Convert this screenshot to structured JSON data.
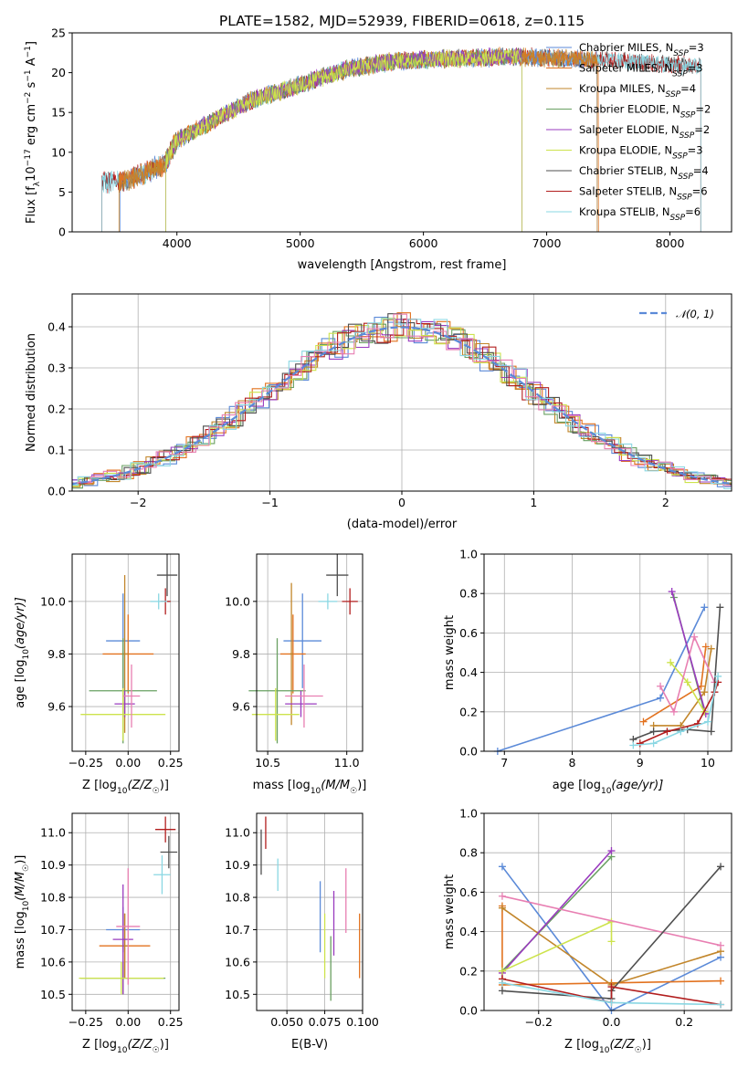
{
  "colors": {
    "Chabrier MILES": "#5b8ad8",
    "Salpeter MILES": "#e2721f",
    "Kroupa MILES": "#c2862b",
    "Chabrier ELODIE": "#69a062",
    "Salpeter ELODIE": "#9a3bbf",
    "Kroupa ELODIE": "#cde34c",
    "Chabrier STELIB": "#4f4f4f",
    "Salpeter STELIB": "#b21e1e",
    "Kroupa STELIB": "#8ad7e3",
    "pink": "#e87fb2",
    "normal": "#5b8ad8"
  },
  "chart_data": [
    {
      "id": "spectrum",
      "type": "line",
      "title": "PLATE=1582, MJD=52939, FIBERID=0618, z=0.115",
      "xlabel": "wavelength [Angstrom, rest frame]",
      "ylabel": "Flux [f",
      "ylabel_sub": "λ",
      "ylabel_rest": "10",
      "ylabel_sup1": "−17",
      "ylabel_rest2": " erg cm",
      "ylabel_sup2": "−2",
      "ylabel_rest3": " s",
      "ylabel_sup3": "−1",
      "ylabel_rest4": " A",
      "ylabel_sup4": "−1",
      "ylabel_end": "]",
      "xlim": [
        3150,
        8500
      ],
      "ylim": [
        0,
        25
      ],
      "xticks": [
        4000,
        5000,
        6000,
        7000,
        8000
      ],
      "yticks": [
        0,
        5,
        10,
        15,
        20,
        25
      ],
      "legend_position": "right",
      "legend": [
        {
          "label": "Chabrier MILES, N",
          "sub": "SSP",
          "value": "=3",
          "key": "Chabrier MILES"
        },
        {
          "label": "Salpeter MILES, N",
          "sub": "SSP",
          "value": "=3",
          "key": "Salpeter MILES"
        },
        {
          "label": "Kroupa MILES, N",
          "sub": "SSP",
          "value": "=4",
          "key": "Kroupa MILES"
        },
        {
          "label": "Chabrier ELODIE, N",
          "sub": "SSP",
          "value": "=2",
          "key": "Chabrier ELODIE"
        },
        {
          "label": "Salpeter ELODIE, N",
          "sub": "SSP",
          "value": "=2",
          "key": "Salpeter ELODIE"
        },
        {
          "label": "Kroupa ELODIE, N",
          "sub": "SSP",
          "value": "=3",
          "key": "Kroupa ELODIE"
        },
        {
          "label": "Chabrier STELIB, N",
          "sub": "SSP",
          "value": "=4",
          "key": "Chabrier STELIB"
        },
        {
          "label": "Salpeter STELIB, N",
          "sub": "SSP",
          "value": "=6",
          "key": "Salpeter STELIB"
        },
        {
          "label": "Kroupa STELIB, N",
          "sub": "SSP",
          "value": "=6",
          "key": "Kroupa STELIB"
        }
      ],
      "continuum": [
        [
          3390,
          6.2
        ],
        [
          3600,
          6.5
        ],
        [
          3900,
          8.5
        ],
        [
          4000,
          11.5
        ],
        [
          4300,
          14
        ],
        [
          4600,
          16.5
        ],
        [
          5000,
          18.5
        ],
        [
          5400,
          20.5
        ],
        [
          5800,
          21.5
        ],
        [
          6300,
          21.8
        ],
        [
          6700,
          22
        ],
        [
          7100,
          21.8
        ],
        [
          7600,
          21.5
        ],
        [
          8000,
          21
        ],
        [
          8250,
          20.8
        ]
      ],
      "series_ranges": [
        {
          "key": "Chabrier MILES",
          "x": [
            3540,
            7410
          ]
        },
        {
          "key": "Salpeter MILES",
          "x": [
            3530,
            7420
          ]
        },
        {
          "key": "Kroupa MILES",
          "x": [
            3530,
            7410
          ]
        },
        {
          "key": "Chabrier ELODIE",
          "x": [
            3910,
            6800
          ]
        },
        {
          "key": "Salpeter ELODIE",
          "x": [
            3910,
            6800
          ]
        },
        {
          "key": "Kroupa ELODIE",
          "x": [
            3910,
            6800
          ]
        },
        {
          "key": "Chabrier STELIB",
          "x": [
            3390,
            8250
          ]
        },
        {
          "key": "Salpeter STELIB",
          "x": [
            3390,
            8250
          ]
        },
        {
          "key": "Kroupa STELIB",
          "x": [
            3390,
            8250
          ]
        }
      ]
    },
    {
      "id": "residuals",
      "type": "histogram",
      "xlabel": "(data-model)/error",
      "ylabel": "Normed distribution",
      "xlim": [
        -2.5,
        2.5
      ],
      "ylim": [
        0,
        0.48
      ],
      "xticks": [
        -2,
        -1,
        0,
        1,
        2
      ],
      "xtick_labels": [
        "−2",
        "−1",
        "0",
        "1",
        "2"
      ],
      "yticks": [
        0.0,
        0.1,
        0.2,
        0.3,
        0.4
      ],
      "ytick_labels": [
        "0.0",
        "0.1",
        "0.2",
        "0.3",
        "0.4"
      ],
      "legend": [
        {
          "label": "𝒩(0, 1)",
          "key": "normal"
        }
      ],
      "legend_position": "top-right",
      "bin_width": 0.1
    },
    {
      "id": "age_vs_Z",
      "type": "errorbar",
      "xlabel": "Z [log",
      "xlabel_sub": "10",
      "xlabel_rest": "(Z/Z",
      "xlabel_sub2": "☉",
      "xlabel_end": ")]",
      "ylabel": "age  [log",
      "ylabel_sub": "10",
      "ylabel_rest": "(age/yr)]",
      "xlim": [
        -0.33,
        0.3
      ],
      "ylim": [
        9.43,
        10.18
      ],
      "xticks": [
        -0.25,
        0.0,
        0.25
      ],
      "xtick_labels": [
        "−0.25",
        "0.00",
        "0.25"
      ],
      "yticks": [
        9.6,
        9.8,
        10.0
      ],
      "ytick_labels": [
        "9.6",
        "9.8",
        "10.0"
      ],
      "points": [
        {
          "key": "Chabrier MILES",
          "x": -0.03,
          "y": 9.85,
          "xerr": 0.1,
          "yerr": 0.18
        },
        {
          "key": "Salpeter MILES",
          "x": -0.0,
          "y": 9.8,
          "xerr": 0.15,
          "yerr": 0.15
        },
        {
          "key": "Kroupa MILES",
          "x": -0.02,
          "y": 9.8,
          "xerr": 0.02,
          "yerr": 0.3
        },
        {
          "key": "Chabrier ELODIE",
          "x": -0.03,
          "y": 9.66,
          "xerr": 0.2,
          "yerr": 0.2
        },
        {
          "key": "Salpeter ELODIE",
          "x": -0.02,
          "y": 9.61,
          "xerr": 0.06,
          "yerr": 0.05
        },
        {
          "key": "Kroupa ELODIE",
          "x": -0.03,
          "y": 9.57,
          "xerr": 0.25,
          "yerr": 0.1
        },
        {
          "key": "pink",
          "x": 0.02,
          "y": 9.64,
          "xerr": 0.05,
          "yerr": 0.12
        },
        {
          "key": "Chabrier STELIB",
          "x": 0.23,
          "y": 10.1,
          "xerr": 0.06,
          "yerr": 0.08
        },
        {
          "key": "Salpeter STELIB",
          "x": 0.22,
          "y": 10.0,
          "xerr": 0.03,
          "yerr": 0.05
        },
        {
          "key": "Kroupa STELIB",
          "x": 0.18,
          "y": 10.0,
          "xerr": 0.05,
          "yerr": 0.03
        }
      ]
    },
    {
      "id": "age_vs_mass",
      "type": "errorbar",
      "xlabel": "mass [log",
      "xlabel_sub": "10",
      "xlabel_rest": "(M/M",
      "xlabel_sub2": "☉",
      "xlabel_end": ")]",
      "xlim": [
        10.43,
        11.1
      ],
      "ylim": [
        9.43,
        10.18
      ],
      "xticks": [
        10.5,
        11.0
      ],
      "xtick_labels": [
        "10.5",
        "11.0"
      ],
      "yticks": [
        9.6,
        9.8,
        10.0
      ],
      "ytick_labels": [
        "9.6",
        "9.8",
        "10.0"
      ],
      "points": [
        {
          "key": "Chabrier MILES",
          "x": 10.72,
          "y": 9.85,
          "xerr": 0.12,
          "yerr": 0.18
        },
        {
          "key": "Salpeter MILES",
          "x": 10.66,
          "y": 9.8,
          "xerr": 0.08,
          "yerr": 0.15
        },
        {
          "key": "Kroupa MILES",
          "x": 10.65,
          "y": 9.8,
          "xerr": 0.01,
          "yerr": 0.27
        },
        {
          "key": "Chabrier ELODIE",
          "x": 10.56,
          "y": 9.66,
          "xerr": 0.18,
          "yerr": 0.2
        },
        {
          "key": "Salpeter ELODIE",
          "x": 10.71,
          "y": 9.61,
          "xerr": 0.1,
          "yerr": 0.05
        },
        {
          "key": "Kroupa ELODIE",
          "x": 10.55,
          "y": 9.57,
          "xerr": 0.15,
          "yerr": 0.1
        },
        {
          "key": "pink",
          "x": 10.73,
          "y": 9.64,
          "xerr": 0.12,
          "yerr": 0.12
        },
        {
          "key": "Chabrier STELIB",
          "x": 10.94,
          "y": 10.1,
          "xerr": 0.07,
          "yerr": 0.08
        },
        {
          "key": "Salpeter STELIB",
          "x": 11.02,
          "y": 10.0,
          "xerr": 0.05,
          "yerr": 0.05
        },
        {
          "key": "Kroupa STELIB",
          "x": 10.88,
          "y": 10.0,
          "xerr": 0.06,
          "yerr": 0.03
        }
      ]
    },
    {
      "id": "weight_vs_age",
      "type": "line",
      "xlabel": "age  [log",
      "xlabel_sub": "10",
      "xlabel_rest": "(age/yr)]",
      "ylabel": "mass weight",
      "xlim": [
        6.7,
        10.35
      ],
      "ylim": [
        0.0,
        1.0
      ],
      "xticks": [
        7,
        8,
        9,
        10
      ],
      "xtick_labels": [
        "7",
        "8",
        "9",
        "10"
      ],
      "yticks": [
        0.0,
        0.2,
        0.4,
        0.6,
        0.8,
        1.0
      ],
      "ytick_labels": [
        "0.0",
        "0.2",
        "0.4",
        "0.6",
        "0.8",
        "1.0"
      ],
      "series": [
        {
          "key": "Chabrier MILES",
          "x": [
            6.9,
            9.3,
            9.95
          ],
          "y": [
            0.0,
            0.27,
            0.73
          ]
        },
        {
          "key": "Salpeter MILES",
          "x": [
            9.05,
            9.9,
            9.97
          ],
          "y": [
            0.15,
            0.33,
            0.53
          ]
        },
        {
          "key": "Kroupa MILES",
          "x": [
            9.2,
            9.6,
            9.95,
            10.05
          ],
          "y": [
            0.13,
            0.13,
            0.3,
            0.52
          ]
        },
        {
          "key": "Chabrier ELODIE",
          "x": [
            9.5,
            9.95
          ],
          "y": [
            0.78,
            0.2
          ]
        },
        {
          "key": "Salpeter ELODIE",
          "x": [
            9.47,
            9.97
          ],
          "y": [
            0.81,
            0.19
          ]
        },
        {
          "key": "Kroupa ELODIE",
          "x": [
            9.45,
            9.7,
            9.95
          ],
          "y": [
            0.45,
            0.35,
            0.2
          ]
        },
        {
          "key": "pink",
          "x": [
            9.3,
            9.5,
            9.8,
            10.1
          ],
          "y": [
            0.33,
            0.2,
            0.58,
            0.35
          ]
        },
        {
          "key": "Chabrier STELIB",
          "x": [
            8.9,
            9.2,
            9.7,
            10.05,
            10.18
          ],
          "y": [
            0.06,
            0.1,
            0.11,
            0.1,
            0.73
          ]
        },
        {
          "key": "Salpeter STELIB",
          "x": [
            9.0,
            9.4,
            9.85,
            10.1,
            10.15
          ],
          "y": [
            0.04,
            0.1,
            0.14,
            0.3,
            0.35
          ]
        },
        {
          "key": "Kroupa STELIB",
          "x": [
            8.9,
            9.2,
            9.6,
            10.0,
            10.15
          ],
          "y": [
            0.03,
            0.04,
            0.1,
            0.15,
            0.38
          ]
        }
      ]
    },
    {
      "id": "mass_vs_Z",
      "type": "errorbar",
      "xlabel": "Z [log",
      "xlabel_sub": "10",
      "xlabel_rest": "(Z/Z",
      "xlabel_sub2": "☉",
      "xlabel_end": ")]",
      "ylabel": "mass [log",
      "ylabel_sub": "10",
      "ylabel_rest": "(M/M",
      "ylabel_sub2": "☉",
      "ylabel_end": ")]",
      "xlim": [
        -0.33,
        0.3
      ],
      "ylim": [
        10.45,
        11.06
      ],
      "xticks": [
        -0.25,
        0.0,
        0.25
      ],
      "xtick_labels": [
        "−0.25",
        "0.00",
        "0.25"
      ],
      "yticks": [
        10.5,
        10.6,
        10.7,
        10.8,
        10.9,
        11.0
      ],
      "ytick_labels": [
        "10.5",
        "10.6",
        "10.7",
        "10.8",
        "10.9",
        "11.0"
      ],
      "points": [
        {
          "key": "Chabrier MILES",
          "x": -0.03,
          "y": 10.7,
          "xerr": 0.1,
          "yerr": 0.07
        },
        {
          "key": "Salpeter MILES",
          "x": -0.02,
          "y": 10.65,
          "xerr": 0.15,
          "yerr": 0.1
        },
        {
          "key": "Kroupa MILES",
          "x": -0.02,
          "y": 10.65,
          "xerr": 0.02,
          "yerr": 0.1
        },
        {
          "key": "Chabrier ELODIE",
          "x": -0.03,
          "y": 10.55,
          "xerr": 0.25,
          "yerr": 0.05
        },
        {
          "key": "Salpeter ELODIE",
          "x": -0.03,
          "y": 10.67,
          "xerr": 0.06,
          "yerr": 0.17
        },
        {
          "key": "Kroupa ELODIE",
          "x": -0.04,
          "y": 10.55,
          "xerr": 0.25,
          "yerr": 0.05
        },
        {
          "key": "pink",
          "x": 0.0,
          "y": 10.71,
          "xerr": 0.07,
          "yerr": 0.18
        },
        {
          "key": "Chabrier STELIB",
          "x": 0.24,
          "y": 10.94,
          "xerr": 0.05,
          "yerr": 0.05
        },
        {
          "key": "Salpeter STELIB",
          "x": 0.22,
          "y": 11.01,
          "xerr": 0.06,
          "yerr": 0.04
        },
        {
          "key": "Kroupa STELIB",
          "x": 0.2,
          "y": 10.87,
          "xerr": 0.05,
          "yerr": 0.06
        }
      ]
    },
    {
      "id": "mass_vs_ebv",
      "type": "errorbar",
      "xlabel": "E(B-V)",
      "xlim": [
        0.03,
        0.1
      ],
      "ylim": [
        10.45,
        11.06
      ],
      "xticks": [
        0.05,
        0.075,
        0.1
      ],
      "xtick_labels": [
        "0.050",
        "0.075",
        "0.100"
      ],
      "yticks": [
        10.5,
        10.6,
        10.7,
        10.8,
        10.9,
        11.0
      ],
      "ytick_labels": [
        "10.5",
        "10.6",
        "10.7",
        "10.8",
        "10.9",
        "11.0"
      ],
      "points": [
        {
          "key": "Chabrier MILES",
          "x": 0.072,
          "y": 10.74,
          "yerr": 0.11
        },
        {
          "key": "Kroupa ELODIE",
          "x": 0.075,
          "y": 10.65,
          "yerr": 0.1
        },
        {
          "key": "Chabrier ELODIE",
          "x": 0.079,
          "y": 10.58,
          "yerr": 0.1
        },
        {
          "key": "Salpeter ELODIE",
          "x": 0.081,
          "y": 10.72,
          "yerr": 0.1
        },
        {
          "key": "pink",
          "x": 0.089,
          "y": 10.79,
          "yerr": 0.1
        },
        {
          "key": "Salpeter MILES",
          "x": 0.098,
          "y": 10.65,
          "yerr": 0.1
        },
        {
          "key": "Chabrier STELIB",
          "x": 0.033,
          "y": 10.94,
          "yerr": 0.07
        },
        {
          "key": "Salpeter STELIB",
          "x": 0.036,
          "y": 11.0,
          "yerr": 0.05
        },
        {
          "key": "Kroupa STELIB",
          "x": 0.044,
          "y": 10.87,
          "yerr": 0.05
        }
      ]
    },
    {
      "id": "weight_vs_Z",
      "type": "line",
      "xlabel": "Z [log",
      "xlabel_sub": "10",
      "xlabel_rest": "(Z/Z",
      "xlabel_sub2": "☉",
      "xlabel_end": ")]",
      "ylabel": "mass weight",
      "xlim": [
        -0.35,
        0.33
      ],
      "ylim": [
        0.0,
        1.0
      ],
      "xticks": [
        -0.2,
        0.0,
        0.2
      ],
      "xtick_labels": [
        "−0.2",
        "0.0",
        "0.2"
      ],
      "yticks": [
        0.0,
        0.2,
        0.4,
        0.6,
        0.8,
        1.0
      ],
      "ytick_labels": [
        "0.0",
        "0.2",
        "0.4",
        "0.6",
        "0.8",
        "1.0"
      ],
      "series": [
        {
          "key": "Chabrier MILES",
          "x": [
            -0.3,
            0.0,
            0.3
          ],
          "y": [
            0.73,
            0.0,
            0.27
          ]
        },
        {
          "key": "Salpeter MILES",
          "x": [
            -0.3,
            -0.3,
            0.0,
            0.3
          ],
          "y": [
            0.53,
            0.13,
            0.14,
            0.15
          ]
        },
        {
          "key": "Kroupa MILES",
          "x": [
            -0.3,
            0.0,
            0.3
          ],
          "y": [
            0.52,
            0.13,
            0.3
          ]
        },
        {
          "key": "Chabrier ELODIE",
          "x": [
            -0.3,
            0.0
          ],
          "y": [
            0.2,
            0.78
          ]
        },
        {
          "key": "Salpeter ELODIE",
          "x": [
            -0.3,
            0.0
          ],
          "y": [
            0.19,
            0.81
          ]
        },
        {
          "key": "Kroupa ELODIE",
          "x": [
            -0.3,
            0.0,
            0.0
          ],
          "y": [
            0.2,
            0.45,
            0.35
          ]
        },
        {
          "key": "pink",
          "x": [
            -0.3,
            0.3
          ],
          "y": [
            0.58,
            0.33
          ]
        },
        {
          "key": "Chabrier STELIB",
          "x": [
            -0.3,
            0.0,
            0.0,
            0.3
          ],
          "y": [
            0.1,
            0.06,
            0.1,
            0.73
          ]
        },
        {
          "key": "Salpeter STELIB",
          "x": [
            -0.3,
            0.0,
            0.0,
            0.3
          ],
          "y": [
            0.16,
            0.04,
            0.12,
            0.03
          ]
        },
        {
          "key": "Kroupa STELIB",
          "x": [
            -0.3,
            0.0,
            0.3
          ],
          "y": [
            0.14,
            0.04,
            0.03
          ]
        }
      ]
    }
  ]
}
